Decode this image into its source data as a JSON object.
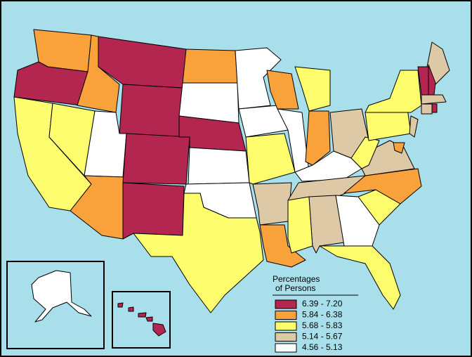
{
  "legend": {
    "title_lines": [
      "Percentages",
      "of Persons"
    ],
    "entries": [
      {
        "label": "6.39 - 7.20",
        "color": "#b3264f"
      },
      {
        "label": "5.84 - 6.38",
        "color": "#f9a13a"
      },
      {
        "label": "5.68 - 5.83",
        "color": "#fdfd6e"
      },
      {
        "label": "5.14 - 5.67",
        "color": "#ddc9a6"
      },
      {
        "label": "4.56 - 5.13",
        "color": "#ffffff"
      }
    ]
  }
}
